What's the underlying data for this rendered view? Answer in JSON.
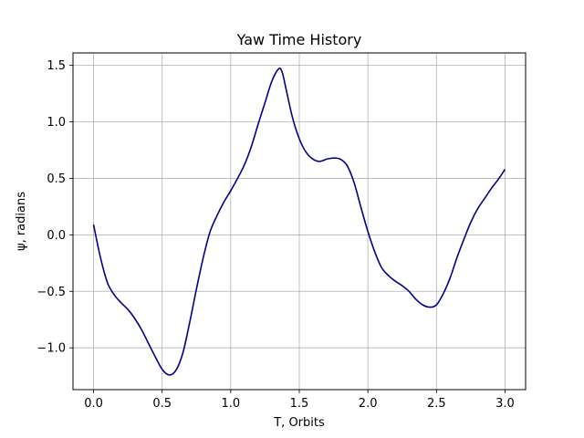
{
  "chart_data": {
    "type": "line",
    "title": "Yaw Time History",
    "xlabel": "T, Orbits",
    "ylabel": "ψ, radians",
    "xlim": [
      -0.15,
      3.15
    ],
    "ylim": [
      -1.37,
      1.61
    ],
    "xticks": [
      0.0,
      0.5,
      1.0,
      1.5,
      2.0,
      2.5,
      3.0
    ],
    "xtick_labels": [
      "0.0",
      "0.5",
      "1.0",
      "1.5",
      "2.0",
      "2.5",
      "3.0"
    ],
    "yticks": [
      -1.0,
      -0.5,
      0.0,
      0.5,
      1.0,
      1.5
    ],
    "ytick_labels": [
      "−1.0",
      "−0.5",
      "0.0",
      "0.5",
      "1.0",
      "1.5"
    ],
    "grid": true,
    "line_color": "#00008b",
    "series": [
      {
        "x": [
          0.0,
          0.05,
          0.1,
          0.15,
          0.2,
          0.25,
          0.3,
          0.35,
          0.4,
          0.45,
          0.5,
          0.55,
          0.6,
          0.65,
          0.7,
          0.75,
          0.8,
          0.85,
          0.9,
          0.95,
          1.0,
          1.05,
          1.1,
          1.15,
          1.2,
          1.25,
          1.3,
          1.35,
          1.375,
          1.4,
          1.45,
          1.5,
          1.55,
          1.6,
          1.65,
          1.7,
          1.75,
          1.8,
          1.85,
          1.9,
          1.95,
          2.0,
          2.05,
          2.1,
          2.15,
          2.2,
          2.25,
          2.3,
          2.35,
          2.4,
          2.45,
          2.5,
          2.55,
          2.6,
          2.65,
          2.7,
          2.75,
          2.8,
          2.85,
          2.9,
          2.95,
          3.0
        ],
        "y": [
          0.09,
          -0.2,
          -0.42,
          -0.53,
          -0.6,
          -0.66,
          -0.74,
          -0.84,
          -0.96,
          -1.08,
          -1.19,
          -1.24,
          -1.2,
          -1.05,
          -0.78,
          -0.48,
          -0.2,
          0.03,
          0.17,
          0.29,
          0.39,
          0.5,
          0.62,
          0.78,
          0.98,
          1.17,
          1.36,
          1.47,
          1.44,
          1.31,
          1.04,
          0.85,
          0.73,
          0.67,
          0.65,
          0.67,
          0.68,
          0.67,
          0.61,
          0.46,
          0.24,
          0.03,
          -0.15,
          -0.29,
          -0.36,
          -0.41,
          -0.45,
          -0.5,
          -0.57,
          -0.62,
          -0.64,
          -0.62,
          -0.52,
          -0.38,
          -0.2,
          -0.04,
          0.11,
          0.23,
          0.32,
          0.41,
          0.49,
          0.58
        ]
      }
    ]
  }
}
